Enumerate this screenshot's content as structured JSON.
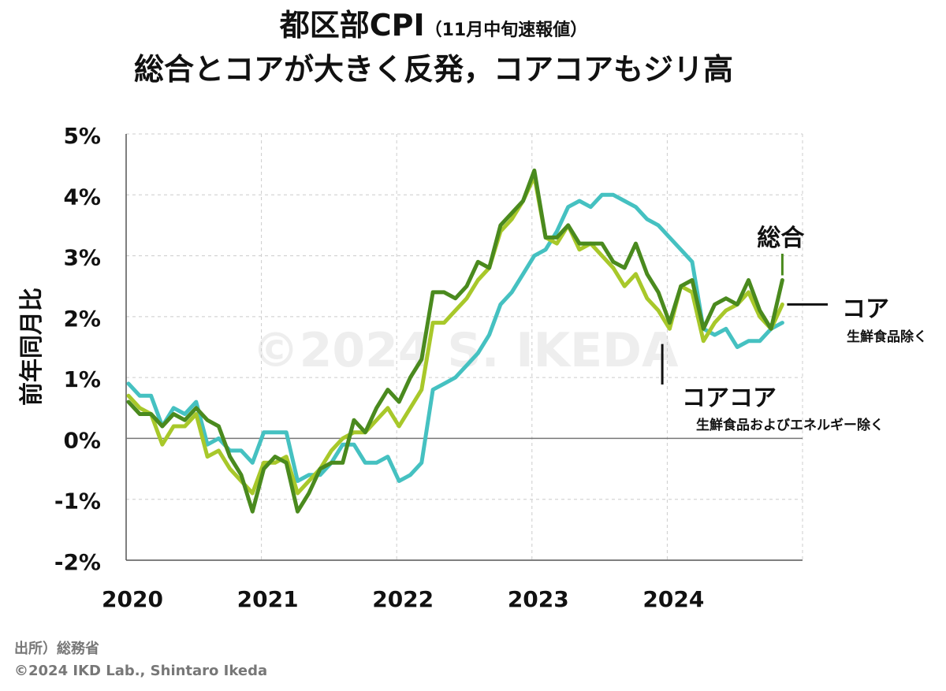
{
  "title": {
    "main": "都区部CPI",
    "sub": "（11月中旬速報値）",
    "line2": "総合とコアが大きく反発，コアコアもジリ高"
  },
  "footer": {
    "source": "出所）総務省",
    "credit": "©2024 IKD Lab., Shintaro Ikeda"
  },
  "watermark": "©2024 S. IKEDA",
  "chart_data": {
    "type": "line",
    "ylabel": "前年同月比",
    "ylim": [
      -2,
      5
    ],
    "yticks": [
      -2,
      -1,
      0,
      1,
      2,
      3,
      4,
      5
    ],
    "ytick_labels": [
      "-2%",
      "-1%",
      "0%",
      "1%",
      "2%",
      "3%",
      "4%",
      "5%"
    ],
    "xlim": [
      0,
      59
    ],
    "xticks": [
      0,
      12,
      24,
      36,
      48
    ],
    "xtick_labels": [
      "2020",
      "2021",
      "2022",
      "2023",
      "2024"
    ],
    "grid": true,
    "series": [
      {
        "name": "総合",
        "color": "#4a8a1e",
        "values": [
          0.6,
          0.4,
          0.4,
          0.2,
          0.4,
          0.3,
          0.5,
          0.3,
          0.2,
          -0.3,
          -0.6,
          -1.2,
          -0.5,
          -0.3,
          -0.4,
          -1.2,
          -0.9,
          -0.5,
          -0.4,
          -0.4,
          0.3,
          0.1,
          0.5,
          0.8,
          0.6,
          1.0,
          1.3,
          2.4,
          2.4,
          2.3,
          2.5,
          2.9,
          2.8,
          3.5,
          3.7,
          3.9,
          4.4,
          3.3,
          3.3,
          3.5,
          3.2,
          3.2,
          3.2,
          2.9,
          2.8,
          3.2,
          2.7,
          2.4,
          1.9,
          2.5,
          2.6,
          1.8,
          2.2,
          2.3,
          2.2,
          2.6,
          2.1,
          1.8,
          2.6
        ]
      },
      {
        "name": "コア",
        "note": "生鮮食品除く",
        "color": "#a8c82a",
        "values": [
          0.7,
          0.5,
          0.4,
          -0.1,
          0.2,
          0.2,
          0.4,
          -0.3,
          -0.2,
          -0.5,
          -0.7,
          -0.9,
          -0.4,
          -0.4,
          -0.3,
          -0.9,
          -0.7,
          -0.5,
          -0.2,
          0.0,
          0.1,
          0.1,
          0.3,
          0.5,
          0.2,
          0.5,
          0.8,
          1.9,
          1.9,
          2.1,
          2.3,
          2.6,
          2.8,
          3.4,
          3.6,
          3.9,
          4.3,
          3.3,
          3.2,
          3.5,
          3.1,
          3.2,
          3.0,
          2.8,
          2.5,
          2.7,
          2.3,
          2.1,
          1.8,
          2.5,
          2.4,
          1.6,
          1.9,
          2.1,
          2.2,
          2.4,
          2.0,
          1.8,
          2.2
        ]
      },
      {
        "name": "コアコア",
        "note": "生鮮食品およびエネルギー除く",
        "color": "#45c1c1",
        "values": [
          0.9,
          0.7,
          0.7,
          0.2,
          0.5,
          0.4,
          0.6,
          -0.1,
          0.0,
          -0.2,
          -0.2,
          -0.4,
          0.1,
          0.1,
          0.1,
          -0.7,
          -0.6,
          -0.6,
          -0.4,
          -0.1,
          -0.1,
          -0.4,
          -0.4,
          -0.3,
          -0.7,
          -0.6,
          -0.4,
          0.8,
          0.9,
          1.0,
          1.2,
          1.4,
          1.7,
          2.2,
          2.4,
          2.7,
          3.0,
          3.1,
          3.4,
          3.8,
          3.9,
          3.8,
          4.0,
          4.0,
          3.9,
          3.8,
          3.6,
          3.5,
          3.3,
          3.1,
          2.9,
          1.8,
          1.7,
          1.8,
          1.5,
          1.6,
          1.6,
          1.8,
          1.9
        ]
      }
    ]
  }
}
